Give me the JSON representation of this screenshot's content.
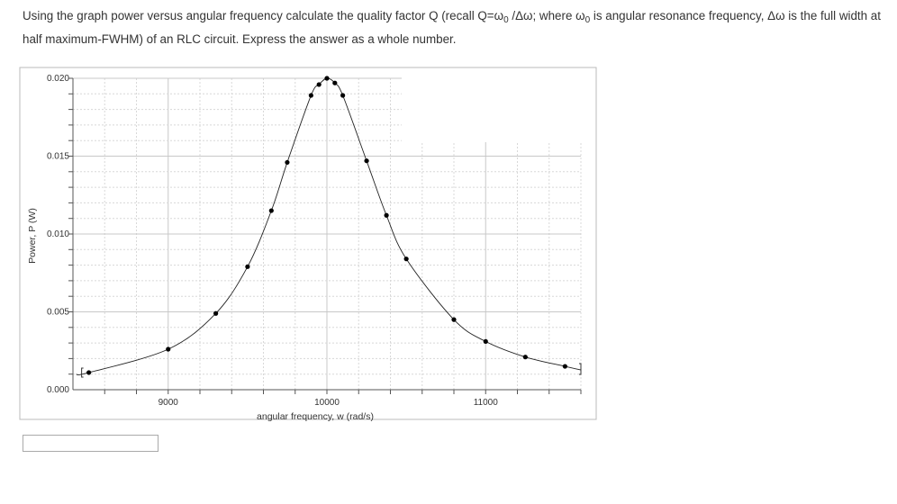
{
  "question": {
    "part1": "Using the graph power versus angular frequency calculate the quality factor Q (recall Q=ω",
    "sub1": "0",
    "part2": " /Δω; where ω",
    "sub2": "0",
    "part3": " is angular resonance  frequency, Δω is the full width at half maximum-FWHM) of an RLC circuit. Express the answer as a whole number."
  },
  "answer_input": {
    "value": ""
  },
  "chart_data": {
    "type": "scatter",
    "title": "",
    "xlabel": "angular frequency, w (rad/s)",
    "ylabel": "Power, P (W)",
    "xlim": [
      8400,
      11600
    ],
    "ylim": [
      0,
      0.02
    ],
    "xticks": [
      "9000",
      "10000",
      "11000"
    ],
    "yticks": [
      "0.000",
      "0.005",
      "0.010",
      "0.015",
      "0.020"
    ],
    "grid": true,
    "fit_curve": true,
    "x": [
      8500,
      9000,
      9300,
      9500,
      9650,
      9750,
      9900,
      9950,
      10000,
      10050,
      10100,
      10250,
      10375,
      10500,
      10800,
      11000,
      11250,
      11500
    ],
    "y": [
      0.0011,
      0.0026,
      0.0049,
      0.0079,
      0.0115,
      0.0146,
      0.0189,
      0.0196,
      0.02,
      0.0197,
      0.0189,
      0.0147,
      0.0112,
      0.0084,
      0.0045,
      0.0031,
      0.0021,
      0.0015
    ],
    "colors": {
      "points": "#000000",
      "grid_major": "#c8c8c8",
      "grid_minor": "#d8d8d8"
    }
  }
}
